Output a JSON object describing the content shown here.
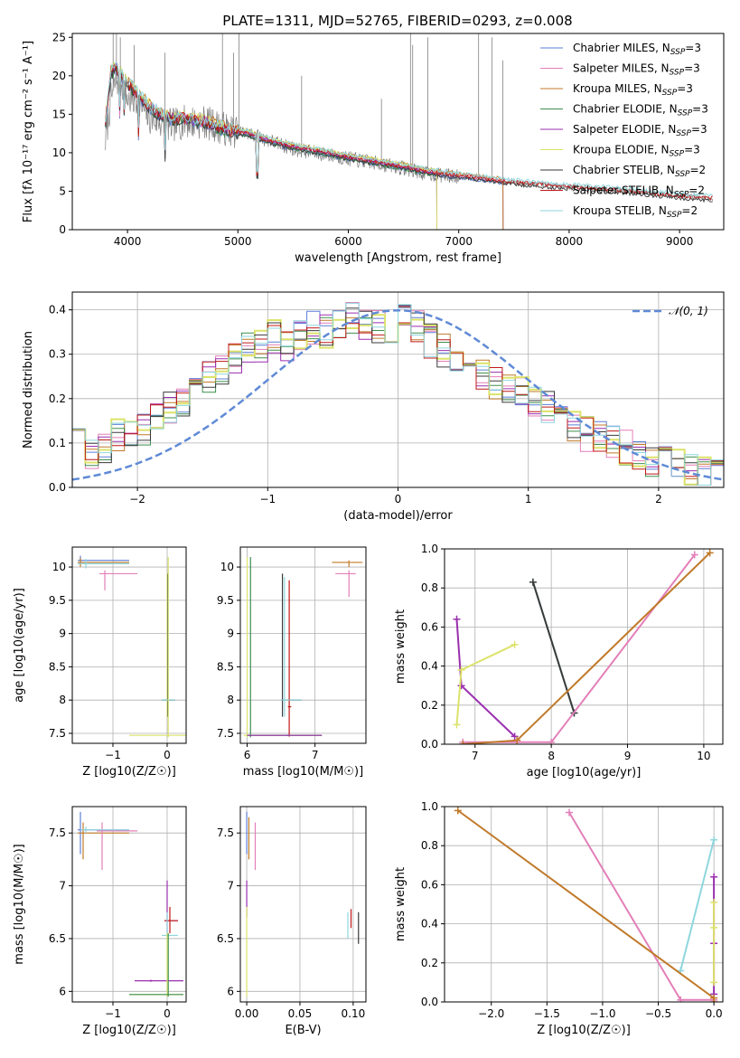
{
  "figure_title": "PLATE=1311, MJD=52765, FIBERID=0293, z=0.008",
  "colors": {
    "Chabrier MILES": "#5b7fd6",
    "Salpeter MILES": "#e37fb8",
    "Kroupa MILES": "#c07a2a",
    "Chabrier ELODIE": "#3e8f4e",
    "Salpeter ELODIE": "#9b2fb0",
    "Kroupa ELODIE": "#dce36a",
    "Chabrier STELIB": "#3a3a3a",
    "Salpeter STELIB": "#c01818",
    "Kroupa STELIB": "#8fd6de",
    "data": "#808080",
    "gaussian": "#5f8ad6",
    "grid": "#b0b0b0"
  },
  "chart_data": [
    {
      "type": "line",
      "title": "PLATE=1311, MJD=52765, FIBERID=0293, z=0.008",
      "xlabel": "wavelength [Angstrom, rest frame]",
      "ylabel": "Flux [fλ 10⁻¹⁷ erg cm⁻² s⁻¹ A⁻¹]",
      "xlim": [
        3500,
        9400
      ],
      "ylim": [
        0,
        25.5
      ],
      "xticks": [
        4000,
        5000,
        6000,
        7000,
        8000,
        9000
      ],
      "yticks": [
        0,
        5,
        10,
        15,
        20,
        25
      ],
      "grid": false,
      "legend_position": "top-right",
      "legend": [
        {
          "label": "Chabrier MILES, N",
          "sub": "SSP",
          "suffix": "=3",
          "color_key": "Chabrier MILES"
        },
        {
          "label": "Salpeter MILES, N",
          "sub": "SSP",
          "suffix": "=3",
          "color_key": "Salpeter MILES"
        },
        {
          "label": "Kroupa MILES, N",
          "sub": "SSP",
          "suffix": "=3",
          "color_key": "Kroupa MILES"
        },
        {
          "label": "Chabrier ELODIE, N",
          "sub": "SSP",
          "suffix": "=3",
          "color_key": "Chabrier ELODIE"
        },
        {
          "label": "Salpeter ELODIE, N",
          "sub": "SSP",
          "suffix": "=3",
          "color_key": "Salpeter ELODIE"
        },
        {
          "label": "Kroupa ELODIE, N",
          "sub": "SSP",
          "suffix": "=3",
          "color_key": "Kroupa ELODIE"
        },
        {
          "label": "Chabrier STELIB, N",
          "sub": "SSP",
          "suffix": "=2",
          "color_key": "Chabrier STELIB"
        },
        {
          "label": "Salpeter STELIB, N",
          "sub": "SSP",
          "suffix": "=2",
          "color_key": "Salpeter STELIB"
        },
        {
          "label": "Kroupa STELIB, N",
          "sub": "SSP",
          "suffix": "=2",
          "color_key": "Kroupa STELIB"
        }
      ],
      "data_spectrum": {
        "x": [
          3800,
          3850,
          3900,
          3950,
          4000,
          4100,
          4200,
          4300,
          4400,
          4500,
          4700,
          4900,
          5100,
          5300,
          5500,
          5700,
          5900,
          6100,
          6300,
          6500,
          6700,
          6900,
          7100,
          7300,
          7500,
          7800,
          8100,
          8400,
          8700,
          9000,
          9300
        ],
        "y": [
          11.5,
          17.0,
          19.5,
          19.0,
          17.0,
          16.5,
          14.5,
          14.0,
          13.5,
          14.0,
          14.0,
          13.0,
          12.5,
          11.5,
          10.5,
          10.0,
          9.5,
          9.0,
          8.5,
          8.0,
          7.3,
          7.0,
          6.8,
          6.4,
          6.1,
          5.8,
          5.5,
          5.2,
          4.8,
          4.4,
          4.1
        ]
      },
      "model_spectrum": {
        "x": [
          3800,
          3850,
          3900,
          3950,
          4000,
          4100,
          4200,
          4300,
          4400,
          4500,
          4700,
          4900,
          5100,
          5300,
          5500,
          5700,
          5900,
          6100,
          6300,
          6500,
          6700,
          6900,
          7100,
          7300,
          7500,
          7800,
          8100,
          8400,
          8700,
          9000,
          9300
        ],
        "y": [
          14.0,
          20.5,
          21.0,
          20.0,
          19.0,
          17.5,
          16.0,
          15.0,
          14.5,
          14.5,
          14.0,
          13.0,
          12.5,
          11.5,
          10.8,
          10.3,
          9.7,
          9.2,
          8.7,
          8.2,
          7.6,
          7.2,
          6.9,
          6.5,
          6.2,
          5.8,
          5.5,
          5.2,
          4.8,
          4.4,
          4.1
        ]
      }
    },
    {
      "type": "line",
      "xlabel": "(data-model)/error",
      "ylabel": "Normed distribution",
      "xlim": [
        -2.5,
        2.5
      ],
      "ylim": [
        0,
        0.44
      ],
      "xticks": [
        -2,
        -1,
        0,
        1,
        2
      ],
      "xtick_labels": [
        "−2",
        "−1",
        "0",
        "1",
        "2"
      ],
      "yticks": [
        0.0,
        0.1,
        0.2,
        0.3,
        0.4
      ],
      "ytick_labels": [
        "0.0",
        "0.1",
        "0.2",
        "0.3",
        "0.4"
      ],
      "grid": true,
      "legend_position": "top-right",
      "legend": [
        {
          "label": "𝒩(0, 1)",
          "color_key": "gaussian",
          "style": "dashed"
        }
      ],
      "bin_edges_start": -2.5,
      "bin_width": 0.1,
      "base_hist": [
        0.14,
        0.08,
        0.09,
        0.12,
        0.11,
        0.13,
        0.15,
        0.18,
        0.2,
        0.22,
        0.25,
        0.27,
        0.29,
        0.31,
        0.32,
        0.34,
        0.32,
        0.34,
        0.36,
        0.35,
        0.37,
        0.38,
        0.37,
        0.36,
        0.35,
        0.38,
        0.36,
        0.33,
        0.31,
        0.28,
        0.27,
        0.26,
        0.23,
        0.22,
        0.21,
        0.19,
        0.18,
        0.16,
        0.14,
        0.12,
        0.11,
        0.1,
        0.09,
        0.08,
        0.06,
        0.06,
        0.05,
        0.04,
        0.03,
        0.03
      ]
    },
    {
      "type": "scatter",
      "xlabel": "Z [log10(Z/Z☉)]",
      "ylabel": "age  [log10(age/yr)]",
      "xlim": [
        -1.75,
        0.35
      ],
      "ylim": [
        7.35,
        10.3
      ],
      "xticks": [
        -1,
        0
      ],
      "xtick_labels": [
        "−1",
        "0"
      ],
      "yticks": [
        7.5,
        8.0,
        8.5,
        9.0,
        9.5,
        10.0
      ],
      "grid": true
    },
    {
      "type": "scatter",
      "xlabel": "mass [log10(M/M☉)]",
      "xlim": [
        5.9,
        7.75
      ],
      "ylim": [
        7.35,
        10.3
      ],
      "xticks": [
        6,
        7
      ],
      "yticks": [
        7.5,
        8.0,
        8.5,
        9.0,
        9.5,
        10.0
      ],
      "grid": true
    },
    {
      "type": "line",
      "xlabel": "age  [log10(age/yr)]",
      "ylabel": "mass weight",
      "xlim": [
        6.6,
        10.25
      ],
      "ylim": [
        0,
        1.0
      ],
      "xticks": [
        7,
        8,
        9,
        10
      ],
      "yticks": [
        0.0,
        0.2,
        0.4,
        0.6,
        0.8,
        1.0
      ],
      "grid": true,
      "series": [
        {
          "color_key": "Kroupa STELIB",
          "x": [
            7.76,
            8.3
          ],
          "y": [
            0.83,
            0.16
          ]
        },
        {
          "color_key": "Chabrier STELIB",
          "x": [
            7.76,
            8.3
          ],
          "y": [
            0.83,
            0.16
          ]
        },
        {
          "color_key": "Salpeter ELODIE",
          "x": [
            6.76,
            6.82,
            7.52
          ],
          "y": [
            0.64,
            0.3,
            0.04
          ]
        },
        {
          "color_key": "Kroupa ELODIE",
          "x": [
            6.76,
            6.82,
            7.52
          ],
          "y": [
            0.1,
            0.38,
            0.51
          ]
        },
        {
          "color_key": "Salpeter MILES",
          "x": [
            6.84,
            8.0,
            9.88
          ],
          "y": [
            0.01,
            0.01,
            0.97
          ]
        },
        {
          "color_key": "Kroupa MILES",
          "x": [
            6.84,
            7.55,
            10.08
          ],
          "y": [
            0.0,
            0.02,
            0.98
          ]
        }
      ]
    },
    {
      "type": "scatter",
      "xlabel": "Z [log10(Z/Z☉)]",
      "ylabel": "mass [log10(M/M☉)]",
      "xlim": [
        -1.75,
        0.35
      ],
      "ylim": [
        5.9,
        7.75
      ],
      "xticks": [
        -1,
        0
      ],
      "xtick_labels": [
        "−1",
        "0"
      ],
      "yticks": [
        6.0,
        6.5,
        7.0,
        7.5
      ],
      "grid": true
    },
    {
      "type": "scatter",
      "xlabel": "E(B-V)",
      "xlim": [
        -0.006,
        0.112
      ],
      "ylim": [
        5.9,
        7.75
      ],
      "xticks": [
        0.0,
        0.05,
        0.1
      ],
      "xtick_labels": [
        "0.00",
        "0.05",
        "0.10"
      ],
      "yticks": [
        6.0,
        6.5,
        7.0,
        7.5
      ],
      "grid": true
    },
    {
      "type": "line",
      "xlabel": "Z [log10(Z/Z☉)]",
      "ylabel": "mass weight",
      "xlim": [
        -2.42,
        0.08
      ],
      "ylim": [
        0,
        1.0
      ],
      "xticks": [
        -2.0,
        -1.5,
        -1.0,
        -0.5,
        0.0
      ],
      "xtick_labels": [
        "−2.0",
        "−1.5",
        "−1.0",
        "−0.5",
        "0.0"
      ],
      "yticks": [
        0.0,
        0.2,
        0.4,
        0.6,
        0.8,
        1.0
      ],
      "grid": true,
      "series": [
        {
          "color_key": "Kroupa STELIB",
          "x": [
            0.0,
            -0.3
          ],
          "y": [
            0.83,
            0.16
          ]
        },
        {
          "color_key": "Salpeter ELODIE",
          "x": [
            0.0,
            0.0,
            0.0
          ],
          "y": [
            0.64,
            0.3,
            0.04
          ]
        },
        {
          "color_key": "Kroupa ELODIE",
          "x": [
            0.0,
            0.0,
            0.0
          ],
          "y": [
            0.51,
            0.38,
            0.1
          ]
        },
        {
          "color_key": "Salpeter MILES",
          "x": [
            -1.3,
            -0.3,
            0.0
          ],
          "y": [
            0.97,
            0.01,
            0.01
          ]
        },
        {
          "color_key": "Kroupa MILES",
          "x": [
            -2.3,
            0.0,
            0.0
          ],
          "y": [
            0.98,
            0.02,
            0.0
          ]
        }
      ]
    }
  ]
}
